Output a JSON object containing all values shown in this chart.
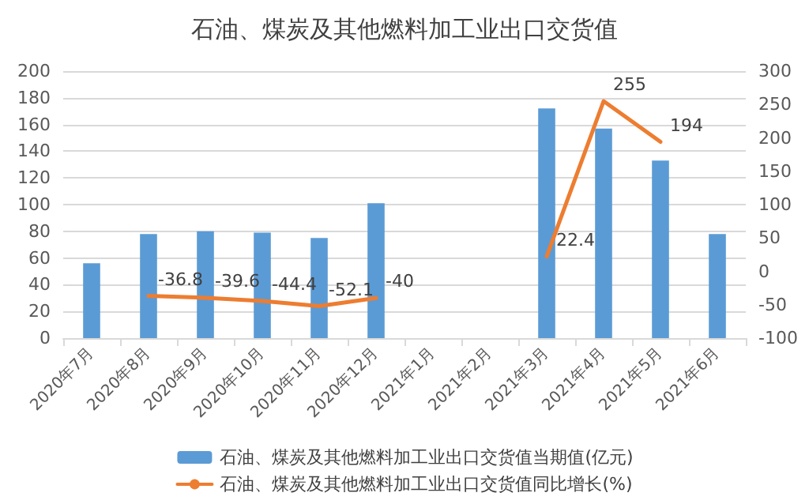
{
  "chart_data": {
    "type": "bar",
    "title": "石油、煤炭及其他燃料加工业出口交货值",
    "categories": [
      "2020年7月",
      "2020年8月",
      "2020年9月",
      "2020年10月",
      "2020年11月",
      "2020年12月",
      "2021年1月",
      "2021年2月",
      "2021年3月",
      "2021年4月",
      "2021年5月",
      "2021年6月"
    ],
    "series": [
      {
        "name": "石油、煤炭及其他燃料加工业出口交货值当期值(亿元)",
        "color": "#5b9bd5",
        "values": [
          56,
          78,
          80,
          79,
          75,
          101,
          null,
          null,
          172,
          157,
          133,
          78
        ]
      },
      {
        "name": "石油、煤炭及其他燃料加工业出口交货值同比增长(%)",
        "type": "line",
        "axis": "y2",
        "color": "#ed7d31",
        "values": [
          null,
          -36.8,
          -39.6,
          -44.4,
          -52.1,
          -40,
          null,
          null,
          22.4,
          255,
          194,
          null
        ],
        "value_labels": [
          null,
          "-36.8",
          "-39.6",
          "-44.4",
          "-52.1",
          "-40",
          null,
          null,
          "22.4",
          "255",
          "194",
          null
        ]
      }
    ],
    "ylim": [
      0,
      200
    ],
    "yticks": [
      0,
      20,
      40,
      60,
      80,
      100,
      120,
      140,
      160,
      180,
      200
    ],
    "y2lim": [
      -100,
      300
    ],
    "y2ticks": [
      -100,
      -50,
      0,
      50,
      100,
      150,
      200,
      250,
      300
    ],
    "grid": "y",
    "legend": "bottom",
    "marker": "none",
    "line_style": "solid"
  }
}
